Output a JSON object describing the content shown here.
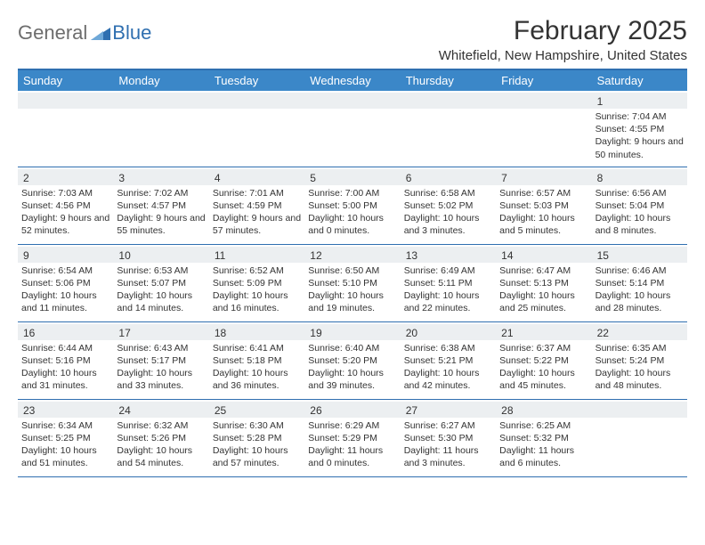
{
  "brand": {
    "part1": "General",
    "part2": "Blue"
  },
  "title": "February 2025",
  "location": "Whitefield, New Hampshire, United States",
  "colors": {
    "header_bg": "#3b87c8",
    "border": "#2f6fb0",
    "datebar": "#eceff1",
    "text": "#333333",
    "logo_gray": "#6d6d6d",
    "logo_blue": "#2f6fb0",
    "bg": "#ffffff"
  },
  "day_names": [
    "Sunday",
    "Monday",
    "Tuesday",
    "Wednesday",
    "Thursday",
    "Friday",
    "Saturday"
  ],
  "weeks": [
    [
      {
        "n": "",
        "sr": "",
        "ss": "",
        "dl": ""
      },
      {
        "n": "",
        "sr": "",
        "ss": "",
        "dl": ""
      },
      {
        "n": "",
        "sr": "",
        "ss": "",
        "dl": ""
      },
      {
        "n": "",
        "sr": "",
        "ss": "",
        "dl": ""
      },
      {
        "n": "",
        "sr": "",
        "ss": "",
        "dl": ""
      },
      {
        "n": "",
        "sr": "",
        "ss": "",
        "dl": ""
      },
      {
        "n": "1",
        "sr": "Sunrise: 7:04 AM",
        "ss": "Sunset: 4:55 PM",
        "dl": "Daylight: 9 hours and 50 minutes."
      }
    ],
    [
      {
        "n": "2",
        "sr": "Sunrise: 7:03 AM",
        "ss": "Sunset: 4:56 PM",
        "dl": "Daylight: 9 hours and 52 minutes."
      },
      {
        "n": "3",
        "sr": "Sunrise: 7:02 AM",
        "ss": "Sunset: 4:57 PM",
        "dl": "Daylight: 9 hours and 55 minutes."
      },
      {
        "n": "4",
        "sr": "Sunrise: 7:01 AM",
        "ss": "Sunset: 4:59 PM",
        "dl": "Daylight: 9 hours and 57 minutes."
      },
      {
        "n": "5",
        "sr": "Sunrise: 7:00 AM",
        "ss": "Sunset: 5:00 PM",
        "dl": "Daylight: 10 hours and 0 minutes."
      },
      {
        "n": "6",
        "sr": "Sunrise: 6:58 AM",
        "ss": "Sunset: 5:02 PM",
        "dl": "Daylight: 10 hours and 3 minutes."
      },
      {
        "n": "7",
        "sr": "Sunrise: 6:57 AM",
        "ss": "Sunset: 5:03 PM",
        "dl": "Daylight: 10 hours and 5 minutes."
      },
      {
        "n": "8",
        "sr": "Sunrise: 6:56 AM",
        "ss": "Sunset: 5:04 PM",
        "dl": "Daylight: 10 hours and 8 minutes."
      }
    ],
    [
      {
        "n": "9",
        "sr": "Sunrise: 6:54 AM",
        "ss": "Sunset: 5:06 PM",
        "dl": "Daylight: 10 hours and 11 minutes."
      },
      {
        "n": "10",
        "sr": "Sunrise: 6:53 AM",
        "ss": "Sunset: 5:07 PM",
        "dl": "Daylight: 10 hours and 14 minutes."
      },
      {
        "n": "11",
        "sr": "Sunrise: 6:52 AM",
        "ss": "Sunset: 5:09 PM",
        "dl": "Daylight: 10 hours and 16 minutes."
      },
      {
        "n": "12",
        "sr": "Sunrise: 6:50 AM",
        "ss": "Sunset: 5:10 PM",
        "dl": "Daylight: 10 hours and 19 minutes."
      },
      {
        "n": "13",
        "sr": "Sunrise: 6:49 AM",
        "ss": "Sunset: 5:11 PM",
        "dl": "Daylight: 10 hours and 22 minutes."
      },
      {
        "n": "14",
        "sr": "Sunrise: 6:47 AM",
        "ss": "Sunset: 5:13 PM",
        "dl": "Daylight: 10 hours and 25 minutes."
      },
      {
        "n": "15",
        "sr": "Sunrise: 6:46 AM",
        "ss": "Sunset: 5:14 PM",
        "dl": "Daylight: 10 hours and 28 minutes."
      }
    ],
    [
      {
        "n": "16",
        "sr": "Sunrise: 6:44 AM",
        "ss": "Sunset: 5:16 PM",
        "dl": "Daylight: 10 hours and 31 minutes."
      },
      {
        "n": "17",
        "sr": "Sunrise: 6:43 AM",
        "ss": "Sunset: 5:17 PM",
        "dl": "Daylight: 10 hours and 33 minutes."
      },
      {
        "n": "18",
        "sr": "Sunrise: 6:41 AM",
        "ss": "Sunset: 5:18 PM",
        "dl": "Daylight: 10 hours and 36 minutes."
      },
      {
        "n": "19",
        "sr": "Sunrise: 6:40 AM",
        "ss": "Sunset: 5:20 PM",
        "dl": "Daylight: 10 hours and 39 minutes."
      },
      {
        "n": "20",
        "sr": "Sunrise: 6:38 AM",
        "ss": "Sunset: 5:21 PM",
        "dl": "Daylight: 10 hours and 42 minutes."
      },
      {
        "n": "21",
        "sr": "Sunrise: 6:37 AM",
        "ss": "Sunset: 5:22 PM",
        "dl": "Daylight: 10 hours and 45 minutes."
      },
      {
        "n": "22",
        "sr": "Sunrise: 6:35 AM",
        "ss": "Sunset: 5:24 PM",
        "dl": "Daylight: 10 hours and 48 minutes."
      }
    ],
    [
      {
        "n": "23",
        "sr": "Sunrise: 6:34 AM",
        "ss": "Sunset: 5:25 PM",
        "dl": "Daylight: 10 hours and 51 minutes."
      },
      {
        "n": "24",
        "sr": "Sunrise: 6:32 AM",
        "ss": "Sunset: 5:26 PM",
        "dl": "Daylight: 10 hours and 54 minutes."
      },
      {
        "n": "25",
        "sr": "Sunrise: 6:30 AM",
        "ss": "Sunset: 5:28 PM",
        "dl": "Daylight: 10 hours and 57 minutes."
      },
      {
        "n": "26",
        "sr": "Sunrise: 6:29 AM",
        "ss": "Sunset: 5:29 PM",
        "dl": "Daylight: 11 hours and 0 minutes."
      },
      {
        "n": "27",
        "sr": "Sunrise: 6:27 AM",
        "ss": "Sunset: 5:30 PM",
        "dl": "Daylight: 11 hours and 3 minutes."
      },
      {
        "n": "28",
        "sr": "Sunrise: 6:25 AM",
        "ss": "Sunset: 5:32 PM",
        "dl": "Daylight: 11 hours and 6 minutes."
      },
      {
        "n": "",
        "sr": "",
        "ss": "",
        "dl": ""
      }
    ]
  ]
}
